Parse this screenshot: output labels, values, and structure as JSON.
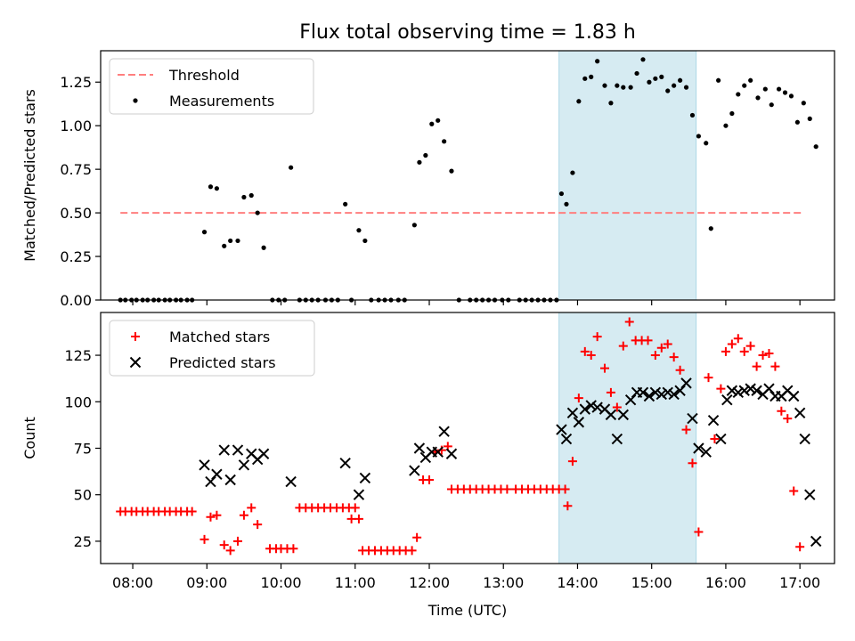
{
  "title": "Flux total observing time = 1.83 h",
  "colors": {
    "threshold": "#ff7f7f",
    "measurement": "#000000",
    "matched": "#ff0000",
    "predicted": "#000000",
    "span": "#add8e6"
  },
  "chart_data": [
    {
      "type": "scatter",
      "ylabel": "Matched/Predicted stars",
      "ylim": [
        0,
        1.43
      ],
      "yticks": [
        0,
        0.25,
        0.5,
        0.75,
        1.0,
        1.25
      ],
      "ytick_labels": [
        "0.00",
        "0.25",
        "0.50",
        "0.75",
        "1.00",
        "1.25"
      ],
      "xlim": [
        "07:34",
        "17:28"
      ],
      "grid": false,
      "legend": {
        "placement": "top-left",
        "entries": [
          {
            "label": "Threshold",
            "key": "threshold"
          },
          {
            "label": "Measurements",
            "key": "measurements"
          }
        ]
      },
      "highlight_span": {
        "start": "13:45",
        "end": "15:36"
      },
      "threshold": {
        "y": 0.5,
        "x_start": "07:50",
        "x_end": "17:03"
      },
      "measurements": [
        [
          "07:50",
          0
        ],
        [
          "07:54",
          0
        ],
        [
          "07:59",
          0
        ],
        [
          "08:03",
          0
        ],
        [
          "08:08",
          0
        ],
        [
          "08:12",
          0
        ],
        [
          "08:17",
          0
        ],
        [
          "08:21",
          0
        ],
        [
          "08:26",
          0
        ],
        [
          "08:30",
          0
        ],
        [
          "08:35",
          0
        ],
        [
          "08:39",
          0
        ],
        [
          "08:44",
          0
        ],
        [
          "08:48",
          0
        ],
        [
          "08:58",
          0.39
        ],
        [
          "09:03",
          0.65
        ],
        [
          "09:08",
          0.64
        ],
        [
          "09:14",
          0.31
        ],
        [
          "09:19",
          0.34
        ],
        [
          "09:25",
          0.34
        ],
        [
          "09:30",
          0.59
        ],
        [
          "09:36",
          0.6
        ],
        [
          "09:41",
          0.5
        ],
        [
          "09:46",
          0.3
        ],
        [
          "09:53",
          0
        ],
        [
          "09:58",
          0
        ],
        [
          "10:03",
          0
        ],
        [
          "10:08",
          0.76
        ],
        [
          "10:15",
          0
        ],
        [
          "10:20",
          0
        ],
        [
          "10:25",
          0
        ],
        [
          "10:30",
          0
        ],
        [
          "10:36",
          0
        ],
        [
          "10:41",
          0
        ],
        [
          "10:46",
          0
        ],
        [
          "10:52",
          0.55
        ],
        [
          "10:57",
          0
        ],
        [
          "11:03",
          0.4
        ],
        [
          "11:08",
          0.34
        ],
        [
          "11:13",
          0
        ],
        [
          "11:19",
          0
        ],
        [
          "11:24",
          0
        ],
        [
          "11:29",
          0
        ],
        [
          "11:35",
          0
        ],
        [
          "11:40",
          0
        ],
        [
          "11:48",
          0.43
        ],
        [
          "11:52",
          0.79
        ],
        [
          "11:57",
          0.83
        ],
        [
          "12:02",
          1.01
        ],
        [
          "12:07",
          1.03
        ],
        [
          "12:12",
          0.91
        ],
        [
          "12:18",
          0.74
        ],
        [
          "12:24",
          0
        ],
        [
          "12:33",
          0
        ],
        [
          "12:38",
          0
        ],
        [
          "12:43",
          0
        ],
        [
          "12:48",
          0
        ],
        [
          "12:53",
          0
        ],
        [
          "12:59",
          0
        ],
        [
          "13:04",
          0
        ],
        [
          "13:13",
          0
        ],
        [
          "13:18",
          0
        ],
        [
          "13:23",
          0
        ],
        [
          "13:28",
          0
        ],
        [
          "13:33",
          0
        ],
        [
          "13:38",
          0
        ],
        [
          "13:43",
          0
        ],
        [
          "13:47",
          0.61
        ],
        [
          "13:51",
          0.55
        ],
        [
          "13:56",
          0.73
        ],
        [
          "14:01",
          1.14
        ],
        [
          "14:06",
          1.27
        ],
        [
          "14:11",
          1.28
        ],
        [
          "14:16",
          1.37
        ],
        [
          "14:22",
          1.23
        ],
        [
          "14:27",
          1.13
        ],
        [
          "14:32",
          1.23
        ],
        [
          "14:37",
          1.22
        ],
        [
          "14:43",
          1.22
        ],
        [
          "14:48",
          1.3
        ],
        [
          "14:53",
          1.38
        ],
        [
          "14:58",
          1.25
        ],
        [
          "15:03",
          1.27
        ],
        [
          "15:08",
          1.28
        ],
        [
          "15:13",
          1.2
        ],
        [
          "15:18",
          1.23
        ],
        [
          "15:23",
          1.26
        ],
        [
          "15:28",
          1.22
        ],
        [
          "15:33",
          1.06
        ],
        [
          "15:38",
          0.94
        ],
        [
          "15:44",
          0.9
        ],
        [
          "15:48",
          0.41
        ],
        [
          "15:54",
          1.26
        ],
        [
          "16:00",
          1.0
        ],
        [
          "16:05",
          1.07
        ],
        [
          "16:10",
          1.18
        ],
        [
          "16:15",
          1.23
        ],
        [
          "16:20",
          1.26
        ],
        [
          "16:26",
          1.16
        ],
        [
          "16:32",
          1.21
        ],
        [
          "16:37",
          1.12
        ],
        [
          "16:43",
          1.21
        ],
        [
          "16:48",
          1.19
        ],
        [
          "16:53",
          1.17
        ],
        [
          "16:58",
          1.02
        ],
        [
          "17:03",
          1.13
        ],
        [
          "17:08",
          1.04
        ],
        [
          "17:13",
          0.88
        ]
      ]
    },
    {
      "type": "scatter",
      "ylabel": "Count",
      "xlabel": "Time (UTC)",
      "ylim": [
        13,
        148
      ],
      "yticks": [
        25,
        50,
        75,
        100,
        125
      ],
      "ytick_labels": [
        "25",
        "50",
        "75",
        "100",
        "125"
      ],
      "xlim": [
        "07:34",
        "17:28"
      ],
      "xticks": [
        "08:00",
        "09:00",
        "10:00",
        "11:00",
        "12:00",
        "13:00",
        "14:00",
        "15:00",
        "16:00",
        "17:00"
      ],
      "grid": false,
      "legend": {
        "placement": "top-left",
        "entries": [
          {
            "label": "Matched stars",
            "key": "matched"
          },
          {
            "label": "Predicted stars",
            "key": "predicted"
          }
        ]
      },
      "highlight_span": {
        "start": "13:45",
        "end": "15:36"
      },
      "matched": [
        [
          "07:50",
          41
        ],
        [
          "07:54",
          41
        ],
        [
          "07:59",
          41
        ],
        [
          "08:03",
          41
        ],
        [
          "08:08",
          41
        ],
        [
          "08:12",
          41
        ],
        [
          "08:17",
          41
        ],
        [
          "08:21",
          41
        ],
        [
          "08:26",
          41
        ],
        [
          "08:30",
          41
        ],
        [
          "08:35",
          41
        ],
        [
          "08:39",
          41
        ],
        [
          "08:44",
          41
        ],
        [
          "08:48",
          41
        ],
        [
          "08:58",
          26
        ],
        [
          "09:03",
          38
        ],
        [
          "09:08",
          39
        ],
        [
          "09:14",
          23
        ],
        [
          "09:19",
          20
        ],
        [
          "09:25",
          25
        ],
        [
          "09:30",
          39
        ],
        [
          "09:36",
          43
        ],
        [
          "09:41",
          34
        ],
        [
          "09:51",
          21
        ],
        [
          "09:56",
          21
        ],
        [
          "10:00",
          21
        ],
        [
          "10:05",
          21
        ],
        [
          "10:10",
          21
        ],
        [
          "10:15",
          43
        ],
        [
          "10:20",
          43
        ],
        [
          "10:25",
          43
        ],
        [
          "10:30",
          43
        ],
        [
          "10:35",
          43
        ],
        [
          "10:40",
          43
        ],
        [
          "10:45",
          43
        ],
        [
          "10:50",
          43
        ],
        [
          "10:55",
          43
        ],
        [
          "11:00",
          43
        ],
        [
          "10:57",
          37
        ],
        [
          "11:03",
          37
        ],
        [
          "11:06",
          20
        ],
        [
          "11:11",
          20
        ],
        [
          "11:16",
          20
        ],
        [
          "11:21",
          20
        ],
        [
          "11:26",
          20
        ],
        [
          "11:31",
          20
        ],
        [
          "11:36",
          20
        ],
        [
          "11:41",
          20
        ],
        [
          "11:46",
          20
        ],
        [
          "11:50",
          27
        ],
        [
          "11:55",
          58
        ],
        [
          "12:00",
          58
        ],
        [
          "12:05",
          73
        ],
        [
          "12:10",
          74
        ],
        [
          "12:15",
          76
        ],
        [
          "12:18",
          53
        ],
        [
          "12:23",
          53
        ],
        [
          "12:28",
          53
        ],
        [
          "12:33",
          53
        ],
        [
          "12:38",
          53
        ],
        [
          "12:43",
          53
        ],
        [
          "12:48",
          53
        ],
        [
          "12:53",
          53
        ],
        [
          "12:58",
          53
        ],
        [
          "13:03",
          53
        ],
        [
          "13:10",
          53
        ],
        [
          "13:15",
          53
        ],
        [
          "13:20",
          53
        ],
        [
          "13:25",
          53
        ],
        [
          "13:30",
          53
        ],
        [
          "13:35",
          53
        ],
        [
          "13:40",
          53
        ],
        [
          "13:45",
          53
        ],
        [
          "13:50",
          53
        ],
        [
          "13:52",
          44
        ],
        [
          "13:56",
          68
        ],
        [
          "14:01",
          102
        ],
        [
          "14:06",
          127
        ],
        [
          "14:11",
          125
        ],
        [
          "14:16",
          135
        ],
        [
          "14:22",
          118
        ],
        [
          "14:27",
          105
        ],
        [
          "14:32",
          97
        ],
        [
          "14:37",
          130
        ],
        [
          "14:42",
          143
        ],
        [
          "14:47",
          133
        ],
        [
          "14:52",
          133
        ],
        [
          "14:57",
          133
        ],
        [
          "15:03",
          125
        ],
        [
          "15:08",
          129
        ],
        [
          "15:13",
          131
        ],
        [
          "15:18",
          124
        ],
        [
          "15:23",
          117
        ],
        [
          "15:28",
          85
        ],
        [
          "15:33",
          67
        ],
        [
          "15:38",
          30
        ],
        [
          "15:46",
          113
        ],
        [
          "15:51",
          80
        ],
        [
          "15:56",
          107
        ],
        [
          "16:00",
          127
        ],
        [
          "16:05",
          131
        ],
        [
          "16:10",
          134
        ],
        [
          "16:15",
          127
        ],
        [
          "16:20",
          130
        ],
        [
          "16:25",
          119
        ],
        [
          "16:30",
          125
        ],
        [
          "16:35",
          126
        ],
        [
          "16:40",
          119
        ],
        [
          "16:45",
          95
        ],
        [
          "16:50",
          91
        ],
        [
          "16:55",
          52
        ],
        [
          "17:00",
          22
        ]
      ],
      "predicted": [
        [
          "08:58",
          66
        ],
        [
          "09:03",
          57
        ],
        [
          "09:08",
          61
        ],
        [
          "09:14",
          74
        ],
        [
          "09:19",
          58
        ],
        [
          "09:25",
          74
        ],
        [
          "09:30",
          66
        ],
        [
          "09:36",
          72
        ],
        [
          "09:41",
          69
        ],
        [
          "09:46",
          72
        ],
        [
          "10:08",
          57
        ],
        [
          "10:52",
          67
        ],
        [
          "11:03",
          50
        ],
        [
          "11:08",
          59
        ],
        [
          "11:48",
          63
        ],
        [
          "11:52",
          75
        ],
        [
          "11:57",
          70
        ],
        [
          "12:02",
          73
        ],
        [
          "12:07",
          73
        ],
        [
          "12:12",
          84
        ],
        [
          "12:18",
          72
        ],
        [
          "13:47",
          85
        ],
        [
          "13:51",
          80
        ],
        [
          "13:56",
          94
        ],
        [
          "14:01",
          89
        ],
        [
          "14:06",
          96
        ],
        [
          "14:11",
          98
        ],
        [
          "14:16",
          97
        ],
        [
          "14:22",
          96
        ],
        [
          "14:27",
          93
        ],
        [
          "14:32",
          80
        ],
        [
          "14:37",
          93
        ],
        [
          "14:43",
          101
        ],
        [
          "14:48",
          105
        ],
        [
          "14:53",
          105
        ],
        [
          "14:58",
          103
        ],
        [
          "15:03",
          105
        ],
        [
          "15:08",
          104
        ],
        [
          "15:13",
          105
        ],
        [
          "15:18",
          104
        ],
        [
          "15:23",
          106
        ],
        [
          "15:28",
          110
        ],
        [
          "15:33",
          91
        ],
        [
          "15:38",
          75
        ],
        [
          "15:44",
          73
        ],
        [
          "15:50",
          90
        ],
        [
          "15:56",
          80
        ],
        [
          "16:01",
          101
        ],
        [
          "16:05",
          106
        ],
        [
          "16:10",
          105
        ],
        [
          "16:15",
          106
        ],
        [
          "16:20",
          107
        ],
        [
          "16:25",
          106
        ],
        [
          "16:30",
          104
        ],
        [
          "16:35",
          107
        ],
        [
          "16:40",
          103
        ],
        [
          "16:45",
          103
        ],
        [
          "16:50",
          106
        ],
        [
          "16:55",
          103
        ],
        [
          "17:00",
          94
        ],
        [
          "17:04",
          80
        ],
        [
          "17:08",
          50
        ],
        [
          "17:13",
          25
        ]
      ]
    }
  ]
}
